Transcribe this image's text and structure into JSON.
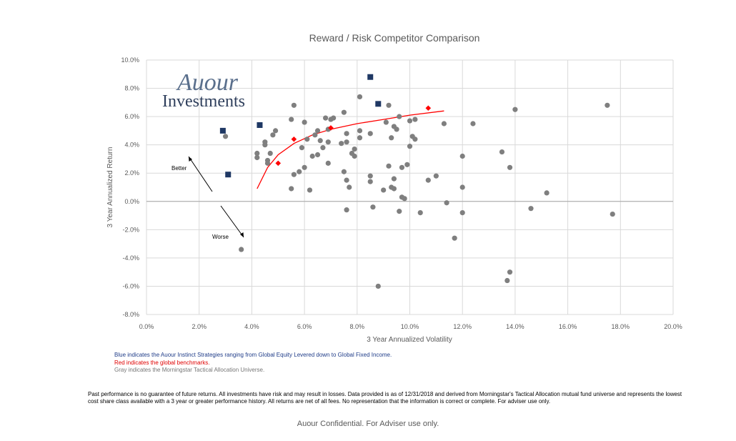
{
  "chart_data": {
    "type": "scatter",
    "title": "Reward / Risk Competitor Comparison",
    "xlabel": "3 Year Annualized Volatility",
    "ylabel": "3 Year Annualized Return",
    "xlim": [
      0,
      20
    ],
    "ylim": [
      -8,
      10
    ],
    "x_ticks": [
      "0.0%",
      "2.0%",
      "4.0%",
      "6.0%",
      "8.0%",
      "10.0%",
      "12.0%",
      "14.0%",
      "16.0%",
      "18.0%",
      "20.0%"
    ],
    "y_ticks": [
      "10.0%",
      "8.0%",
      "6.0%",
      "4.0%",
      "2.0%",
      "0.0%",
      "-2.0%",
      "-4.0%",
      "-6.0%",
      "-8.0%"
    ],
    "grid": true,
    "series": [
      {
        "marker": "square",
        "color": "#1f3864",
        "points": [
          [
            2.9,
            5.0
          ],
          [
            3.1,
            1.9
          ],
          [
            4.3,
            5.4
          ],
          [
            8.5,
            8.8
          ],
          [
            8.8,
            6.9
          ]
        ]
      },
      {
        "marker": "diamond",
        "color": "#ff0000",
        "points": [
          [
            5.0,
            2.7
          ],
          [
            5.6,
            4.4
          ],
          [
            7.0,
            5.2
          ],
          [
            10.7,
            6.6
          ]
        ]
      },
      {
        "marker": "circle",
        "color": "#7f7f7f",
        "points": [
          [
            3.0,
            4.6
          ],
          [
            3.6,
            -3.4
          ],
          [
            4.2,
            3.1
          ],
          [
            4.2,
            3.4
          ],
          [
            4.5,
            4.0
          ],
          [
            4.5,
            4.2
          ],
          [
            4.6,
            2.7
          ],
          [
            4.6,
            2.9
          ],
          [
            4.7,
            3.4
          ],
          [
            4.8,
            4.7
          ],
          [
            4.9,
            5.0
          ],
          [
            5.5,
            0.9
          ],
          [
            5.5,
            5.8
          ],
          [
            5.6,
            1.9
          ],
          [
            5.6,
            6.8
          ],
          [
            5.8,
            2.1
          ],
          [
            5.9,
            3.8
          ],
          [
            6.0,
            2.4
          ],
          [
            6.0,
            5.6
          ],
          [
            6.1,
            4.4
          ],
          [
            6.2,
            0.8
          ],
          [
            6.3,
            3.2
          ],
          [
            6.4,
            4.7
          ],
          [
            6.5,
            3.3
          ],
          [
            6.5,
            5.0
          ],
          [
            6.6,
            4.3
          ],
          [
            6.7,
            3.8
          ],
          [
            6.8,
            5.9
          ],
          [
            6.9,
            2.7
          ],
          [
            6.9,
            4.2
          ],
          [
            6.9,
            5.1
          ],
          [
            7.0,
            5.8
          ],
          [
            7.1,
            5.9
          ],
          [
            7.4,
            4.1
          ],
          [
            7.5,
            2.1
          ],
          [
            7.5,
            6.3
          ],
          [
            7.6,
            -0.6
          ],
          [
            7.6,
            1.5
          ],
          [
            7.6,
            4.2
          ],
          [
            7.6,
            4.8
          ],
          [
            7.7,
            1.0
          ],
          [
            7.8,
            3.4
          ],
          [
            7.9,
            3.2
          ],
          [
            7.9,
            3.7
          ],
          [
            8.1,
            4.5
          ],
          [
            8.1,
            5.0
          ],
          [
            8.1,
            7.4
          ],
          [
            8.5,
            1.4
          ],
          [
            8.5,
            1.8
          ],
          [
            8.5,
            4.8
          ],
          [
            8.6,
            -0.4
          ],
          [
            8.8,
            -6.0
          ],
          [
            9.0,
            0.8
          ],
          [
            9.1,
            5.6
          ],
          [
            9.2,
            2.5
          ],
          [
            9.2,
            6.8
          ],
          [
            9.3,
            4.5
          ],
          [
            9.3,
            1.0
          ],
          [
            9.4,
            0.9
          ],
          [
            9.4,
            1.6
          ],
          [
            9.4,
            5.3
          ],
          [
            9.5,
            5.1
          ],
          [
            9.6,
            6.0
          ],
          [
            9.6,
            -0.7
          ],
          [
            9.7,
            0.3
          ],
          [
            9.7,
            2.4
          ],
          [
            9.8,
            0.2
          ],
          [
            9.9,
            2.6
          ],
          [
            10.0,
            3.9
          ],
          [
            10.0,
            5.7
          ],
          [
            10.1,
            4.6
          ],
          [
            10.2,
            4.4
          ],
          [
            10.2,
            5.8
          ],
          [
            10.4,
            -0.8
          ],
          [
            10.7,
            1.5
          ],
          [
            11.0,
            1.8
          ],
          [
            11.3,
            5.5
          ],
          [
            11.4,
            -0.1
          ],
          [
            11.7,
            -2.6
          ],
          [
            12.0,
            -0.8
          ],
          [
            12.0,
            1.0
          ],
          [
            12.0,
            3.2
          ],
          [
            12.4,
            5.5
          ],
          [
            13.5,
            3.5
          ],
          [
            13.7,
            -5.6
          ],
          [
            13.8,
            -5.0
          ],
          [
            13.8,
            2.4
          ],
          [
            14.0,
            6.5
          ],
          [
            14.6,
            -0.5
          ],
          [
            15.2,
            0.6
          ],
          [
            17.5,
            6.8
          ],
          [
            17.7,
            -0.9
          ]
        ]
      }
    ],
    "trendline": {
      "color": "#ff0000",
      "x_range": [
        4.2,
        11.3
      ],
      "points": [
        [
          4.2,
          0.9
        ],
        [
          4.6,
          2.4
        ],
        [
          5.0,
          3.3
        ],
        [
          5.6,
          4.1
        ],
        [
          6.3,
          4.7
        ],
        [
          7.0,
          5.1
        ],
        [
          8.0,
          5.5
        ],
        [
          9.0,
          5.8
        ],
        [
          10.0,
          6.1
        ],
        [
          11.3,
          6.4
        ]
      ]
    },
    "annotations": [
      {
        "text": "Better",
        "direction": "up-left"
      },
      {
        "text": "Worse",
        "direction": "down-right"
      }
    ]
  },
  "logo": {
    "line1": "Auour",
    "line2": "Investments"
  },
  "legend": {
    "blue": {
      "text": "Blue indicates the Auour Instinct Strategies ranging from Global Equity Levered down to Global Fixed Income.",
      "color": "#1f3c88"
    },
    "red": {
      "text": "Red indicates the global benchmarks.",
      "color": "#e00000"
    },
    "gray": {
      "text": "Gray indicates the Morningstar Tactical Allocation Universe.",
      "color": "#767676"
    }
  },
  "disclaimer": "Past performance is no guarantee of future returns.  All investments have risk and may result in losses.  Data provided is as of 12/31/2018 and derived from Morningstar's Tactical Allocation mutual fund universe and represents the lowest cost share class available with a 3 year or greater performance history.  All returns are net of all fees.  No representation that the information is correct or complete.  For adviser use only.",
  "footer": "Auour Confidential.  For Adviser use only."
}
